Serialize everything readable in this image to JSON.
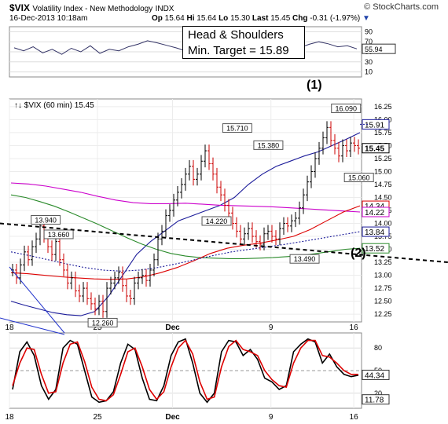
{
  "header": {
    "symbol": "$VIX",
    "name": "Volatility Index - New Methodology",
    "exchange": "INDX",
    "timestamp": "16-Dec-2013 10:18am",
    "open_label": "Op",
    "open": "15.64",
    "high_label": "Hi",
    "high": "15.64",
    "low_label": "Lo",
    "low": "15.30",
    "last_label": "Last",
    "last": "15.45",
    "chg_label": "Chg",
    "chg": "-0.31 (-1.97%)",
    "brand": "© StockCharts.com"
  },
  "annotations": {
    "pattern_line1": "Head & Shoulders",
    "pattern_line2": "Min. Target = 15.89",
    "wave1": "(1)",
    "wave2": "(2)"
  },
  "colors": {
    "price_up": "#000000",
    "price_down": "#cc0000",
    "ma_blue": "#1a1a99",
    "ma_magenta": "#cc00cc",
    "ma_red": "#dd0000",
    "ma_green": "#2a8a2a",
    "neckline": "#000000",
    "stoch_k": "#000000",
    "stoch_d": "#dd0000"
  },
  "chart_data": [
    {
      "type": "line",
      "panel": "upper indicator",
      "y_ticks": [
        "90",
        "70",
        "50",
        "30",
        "10"
      ],
      "ylim": [
        0,
        100
      ],
      "last_value_label": "55.94",
      "values": [
        58,
        52,
        60,
        48,
        55,
        45,
        57,
        50,
        62,
        47,
        55,
        52,
        60,
        65,
        72,
        68,
        63,
        58,
        52,
        56,
        50,
        48,
        44,
        47,
        52,
        55,
        50,
        60,
        68,
        63,
        58,
        65,
        70,
        66,
        60,
        62,
        56
      ]
    },
    {
      "type": "line",
      "title": "$VIX (60 min) 15.45",
      "panel": "price",
      "x_ticks": [
        "18",
        "25",
        "Dec",
        "9",
        "16"
      ],
      "y_ticks": [
        "16.25",
        "16.00",
        "15.75",
        "15.50",
        "15.25",
        "15.00",
        "14.75",
        "14.50",
        "14.25",
        "14.00",
        "13.75",
        "13.50",
        "13.25",
        "13.00",
        "12.75",
        "12.50",
        "12.25"
      ],
      "ylim": [
        12.1,
        16.4
      ],
      "right_labels": [
        "15.91",
        "15.45",
        "14.34",
        "14.22",
        "13.84",
        "13.52"
      ],
      "point_labels": [
        {
          "t": 14,
          "y": 13.94,
          "text": "13.940"
        },
        {
          "t": 19,
          "y": 13.66,
          "text": "13.660"
        },
        {
          "t": 36,
          "y": 12.26,
          "text": "12.260"
        },
        {
          "t": 88,
          "y": 15.71,
          "text": "15.710"
        },
        {
          "t": 100,
          "y": 15.38,
          "text": "15.380"
        },
        {
          "t": 80,
          "y": 14.22,
          "text": "14.220"
        },
        {
          "t": 114,
          "y": 13.49,
          "text": "13.490"
        },
        {
          "t": 130,
          "y": 16.09,
          "text": "16.090"
        },
        {
          "t": 135,
          "y": 15.06,
          "text": "15.060"
        }
      ],
      "series": [
        {
          "role": "price",
          "values": [
            13.1,
            12.95,
            13.2,
            13.45,
            13.3,
            13.55,
            13.7,
            13.95,
            13.75,
            13.55,
            13.4,
            13.65,
            13.3,
            13.1,
            12.85,
            12.95,
            12.7,
            12.6,
            12.75,
            12.55,
            12.45,
            12.35,
            12.5,
            12.3,
            12.75,
            12.85,
            12.95,
            13.05,
            12.8,
            12.6,
            12.55,
            12.85,
            12.95,
            13.0,
            12.9,
            13.1,
            13.3,
            13.7,
            13.85,
            14.15,
            14.25,
            14.45,
            14.6,
            14.75,
            14.95,
            15.1,
            14.85,
            14.95,
            15.2,
            15.4,
            15.15,
            14.95,
            14.7,
            14.55,
            14.35,
            14.2,
            14.0,
            13.85,
            13.7,
            13.8,
            13.9,
            13.75,
            13.65,
            13.6,
            13.8,
            13.85,
            13.75,
            13.7,
            13.9,
            14.0,
            13.95,
            14.05,
            14.1,
            14.3,
            14.55,
            14.8,
            15.0,
            15.25,
            15.45,
            15.65,
            15.85,
            15.6,
            15.45,
            15.3,
            15.5,
            15.4,
            15.55,
            15.5,
            15.45
          ]
        },
        {
          "role": "ma_blue",
          "values": [
            12.5,
            12.42,
            12.35,
            12.28,
            12.24,
            12.22,
            12.3,
            12.6,
            13.0,
            13.4,
            13.65,
            13.85,
            14.05,
            14.15,
            14.25,
            14.35,
            14.5,
            14.75,
            14.95,
            15.1,
            15.2,
            15.3,
            15.38,
            15.5,
            15.62,
            15.75
          ]
        },
        {
          "role": "ma_magenta",
          "values": [
            14.78,
            14.76,
            14.72,
            14.66,
            14.6,
            14.52,
            14.45,
            14.4,
            14.38,
            14.38,
            14.39,
            14.37,
            14.35,
            14.34,
            14.33,
            14.32,
            14.3,
            14.28,
            14.26,
            14.24,
            14.22
          ]
        },
        {
          "role": "ma_green",
          "values": [
            14.55,
            14.5,
            14.42,
            14.33,
            14.22,
            14.1,
            13.98,
            13.85,
            13.72,
            13.6,
            13.5,
            13.42,
            13.37,
            13.34,
            13.33,
            13.32,
            13.32,
            13.33,
            13.34,
            13.36,
            13.38,
            13.42,
            13.46,
            13.5,
            13.52
          ]
        },
        {
          "role": "ma_red",
          "values": [
            13.05,
            13.03,
            13.0,
            12.97,
            12.95,
            12.93,
            12.92,
            12.93,
            12.97,
            13.05,
            13.15,
            13.28,
            13.42,
            13.52,
            13.58,
            13.62,
            13.68,
            13.75,
            13.88,
            14.05,
            14.22,
            14.34
          ]
        },
        {
          "role": "ma_dotted",
          "values": [
            13.45,
            13.38,
            13.3,
            13.22,
            13.15,
            13.1,
            13.08,
            13.1,
            13.15,
            13.22,
            13.3,
            13.38,
            13.45,
            13.5,
            13.55,
            13.6,
            13.66,
            13.72,
            13.78,
            13.84
          ]
        }
      ]
    },
    {
      "type": "line",
      "panel": "stochastic",
      "x_ticks": [
        "18",
        "25",
        "Dec",
        "9",
        "16"
      ],
      "y_ticks": [
        "80",
        "50",
        "20"
      ],
      "ylim": [
        0,
        100
      ],
      "right_labels": [
        "11.78",
        "44.34"
      ],
      "series": [
        {
          "role": "stoch_k",
          "values": [
            25,
            75,
            88,
            70,
            30,
            12,
            25,
            80,
            90,
            85,
            50,
            15,
            8,
            10,
            22,
            60,
            85,
            78,
            40,
            12,
            10,
            30,
            70,
            88,
            92,
            60,
            20,
            8,
            20,
            75,
            90,
            88,
            70,
            78,
            65,
            40,
            35,
            25,
            30,
            75,
            85,
            92,
            88,
            60,
            72,
            55,
            45,
            42,
            44
          ]
        },
        {
          "role": "stoch_d",
          "values": [
            30,
            60,
            80,
            78,
            45,
            20,
            22,
            60,
            85,
            88,
            62,
            28,
            12,
            10,
            18,
            45,
            75,
            80,
            55,
            25,
            12,
            22,
            55,
            80,
            90,
            72,
            35,
            12,
            15,
            55,
            82,
            90,
            78,
            75,
            70,
            50,
            38,
            30,
            28,
            60,
            80,
            90,
            90,
            70,
            68,
            60,
            50,
            45,
            45
          ]
        }
      ]
    }
  ]
}
